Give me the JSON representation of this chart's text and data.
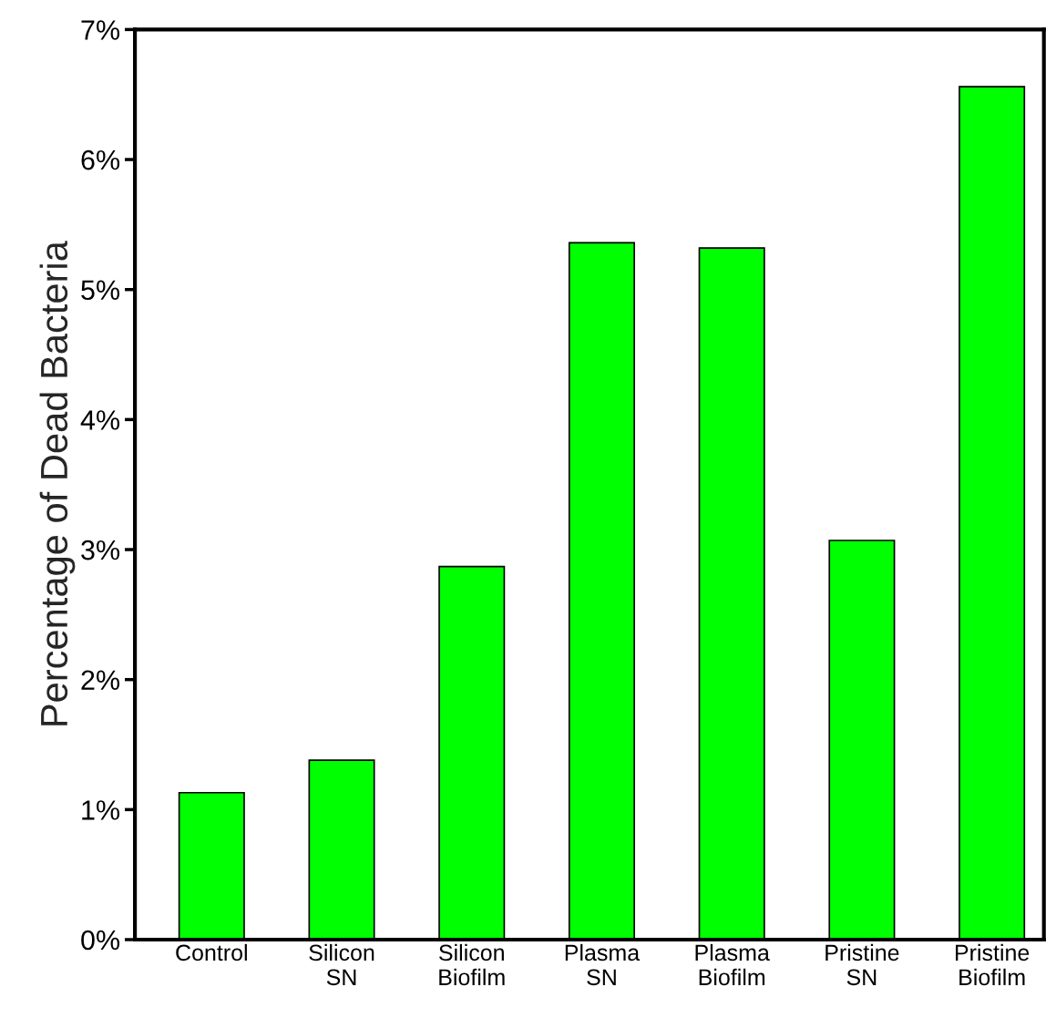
{
  "chart_data": {
    "type": "bar",
    "ylabel": "Percentage of Dead Bacteria",
    "categories": [
      "Control",
      "Silicon\nSN",
      "Silicon\nBiofilm",
      "Plasma\nSN",
      "Plasma\nBiofilm",
      "Pristine\nSN",
      "Pristine\nBiofilm"
    ],
    "series": [
      {
        "color": "#00ff00",
        "values": [
          1.13,
          1.38,
          2.87,
          5.36,
          5.32,
          3.07,
          6.56
        ]
      }
    ],
    "ylim": [
      0,
      7
    ],
    "yticks": [
      {
        "value": 0,
        "label": "0%"
      },
      {
        "value": 1,
        "label": "1%"
      },
      {
        "value": 2,
        "label": "2%"
      },
      {
        "value": 3,
        "label": "3%"
      },
      {
        "value": 4,
        "label": "4%"
      },
      {
        "value": 5,
        "label": "5%"
      },
      {
        "value": 6,
        "label": "6%"
      },
      {
        "value": 7,
        "label": "7%"
      }
    ],
    "grid": false
  }
}
